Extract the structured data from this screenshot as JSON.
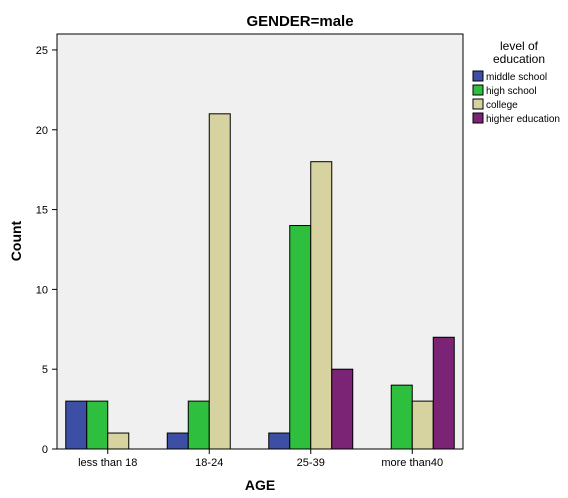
{
  "chart_data": {
    "type": "bar",
    "title": "GENDER=male",
    "xlabel": "AGE",
    "ylabel": "Count",
    "categories": [
      "less than 18",
      "18-24",
      "25-39",
      "more than40"
    ],
    "series": [
      {
        "name": "middle school",
        "color": "#3c4fa4",
        "values": [
          3,
          1,
          1,
          0
        ]
      },
      {
        "name": "high school",
        "color": "#2fbf3f",
        "values": [
          3,
          3,
          14,
          4
        ]
      },
      {
        "name": "college",
        "color": "#d6d3a0",
        "values": [
          1,
          21,
          18,
          3
        ]
      },
      {
        "name": "higher education",
        "color": "#7b2374",
        "values": [
          0,
          0,
          5,
          7
        ]
      }
    ],
    "ylim": [
      0,
      26
    ],
    "yticks": [
      0,
      5,
      10,
      15,
      20,
      25
    ],
    "legend": {
      "title_lines": [
        "level of",
        "education"
      ],
      "placement": "right"
    },
    "plot_background": "#f0f0f0",
    "grid": false
  }
}
